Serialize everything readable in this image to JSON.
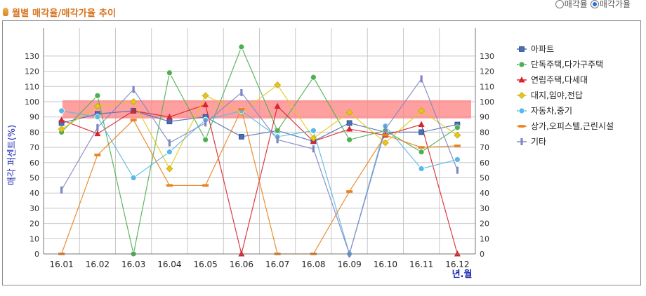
{
  "header": {
    "title": "월별 매각율/매각가율 추이",
    "radio_options": [
      {
        "label": "매각율",
        "checked": false
      },
      {
        "label": "매각가율",
        "checked": true
      }
    ]
  },
  "chart_data": {
    "type": "line",
    "title": "",
    "xlabel": "년.월",
    "ylabel": "매각 퍼센트(%)",
    "ylim": [
      0,
      140
    ],
    "yticks": [
      0,
      10,
      20,
      30,
      40,
      50,
      60,
      70,
      80,
      90,
      100,
      110,
      120,
      130
    ],
    "grid": true,
    "legend_position": "right",
    "categories": [
      "16.01",
      "16.02",
      "16.03",
      "16.04",
      "16.05",
      "16.06",
      "16.07",
      "16.08",
      "16.09",
      "16.10",
      "16.11",
      "16.12"
    ],
    "highlight_band": {
      "from": 89,
      "to": 101,
      "color": "#ff8080"
    },
    "series": [
      {
        "name": "아파트",
        "color": "#4a6fb4",
        "marker": "square",
        "values": [
          86,
          92,
          94,
          87,
          90,
          77,
          81,
          74,
          86,
          80,
          80,
          85
        ]
      },
      {
        "name": "단독주택,다가구주택",
        "color": "#4caf50",
        "marker": "circle",
        "values": [
          80,
          104,
          0,
          119,
          75,
          136,
          81,
          116,
          75,
          81,
          67,
          83
        ]
      },
      {
        "name": "연립주택,다세대",
        "color": "#d9232e",
        "marker": "triangle",
        "values": [
          88,
          79,
          94,
          90,
          98,
          0,
          97,
          74,
          82,
          78,
          85,
          0
        ]
      },
      {
        "name": "대지,임야,전답",
        "color": "#e6c619",
        "marker": "diamond",
        "values": [
          82,
          97,
          100,
          56,
          104,
          93,
          111,
          76,
          93,
          73,
          94,
          78
        ]
      },
      {
        "name": "자동차,중기",
        "color": "#58b9e6",
        "marker": "circle",
        "values": [
          94,
          90,
          50,
          67,
          88,
          94,
          77,
          81,
          0,
          84,
          56,
          62
        ]
      },
      {
        "name": "상가,오피스텔,근린시설",
        "color": "#e8821e",
        "marker": "dash",
        "values": [
          0,
          65,
          88,
          45,
          45,
          95,
          0,
          0,
          41,
          78,
          70,
          71
        ]
      },
      {
        "name": "기타",
        "color": "#7f86c4",
        "marker": "bar",
        "values": [
          42,
          83,
          108,
          73,
          86,
          106,
          75,
          69,
          0,
          82,
          115,
          55
        ]
      }
    ]
  }
}
